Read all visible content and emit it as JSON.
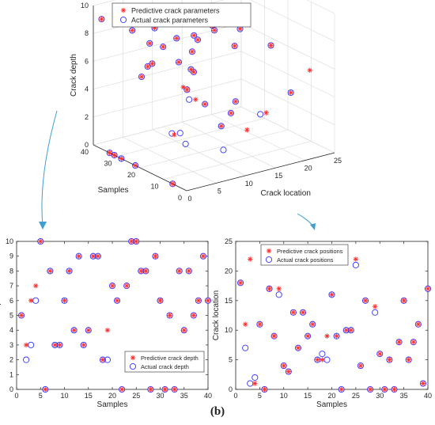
{
  "figure_label": "(b)",
  "colors": {
    "pred": "#ff2a2a",
    "actual": "#3333ff",
    "axis": "#262626",
    "grid": "#d9d9d9",
    "arrow": "#3fa0d0"
  },
  "chart_data": [
    {
      "type": "scatter3d",
      "title": "",
      "xlabel": "Crack location",
      "ylabel": "Samples",
      "zlabel": "Crack depth",
      "xticks": [
        0,
        5,
        10,
        15,
        20,
        25
      ],
      "yticks": [
        0,
        10,
        20,
        30,
        40
      ],
      "zticks": [
        0,
        2,
        4,
        6,
        8,
        10
      ],
      "xlim": [
        0,
        25
      ],
      "ylim": [
        0,
        40
      ],
      "zlim": [
        0,
        10
      ],
      "grid": true,
      "legend_position": "top",
      "series": [
        {
          "name": "Predictive crack parameters",
          "marker": "star",
          "points": [
            [
              18,
              1,
              5
            ],
            [
              11,
              2,
              3
            ],
            [
              22,
              3,
              6
            ],
            [
              1,
              4,
              7
            ],
            [
              11,
              5,
              10
            ],
            [
              0,
              6,
              0
            ],
            [
              17,
              7,
              8
            ],
            [
              9,
              8,
              3
            ],
            [
              17,
              9,
              3
            ],
            [
              4,
              10,
              6
            ],
            [
              3,
              11,
              8
            ],
            [
              13,
              12,
              4
            ],
            [
              7,
              13,
              9
            ],
            [
              13,
              14,
              3
            ],
            [
              9,
              15,
              4
            ],
            [
              11,
              16,
              9
            ],
            [
              5,
              17,
              9
            ],
            [
              5,
              18,
              2
            ],
            [
              9,
              19,
              4
            ],
            [
              16,
              20,
              7
            ],
            [
              9,
              21,
              6
            ],
            [
              0,
              22,
              0
            ],
            [
              10,
              23,
              7
            ],
            [
              10,
              24,
              10
            ],
            [
              22,
              25,
              10
            ],
            [
              4,
              26,
              8
            ],
            [
              15,
              27,
              8
            ],
            [
              0,
              28,
              0
            ],
            [
              14,
              29,
              9
            ],
            [
              6,
              30,
              6
            ],
            [
              0,
              31,
              0
            ],
            [
              5,
              32,
              5
            ],
            [
              0,
              33,
              0
            ],
            [
              8,
              34,
              8
            ],
            [
              15,
              35,
              4
            ],
            [
              5,
              36,
              8
            ],
            [
              8,
              37,
              5
            ],
            [
              11,
              38,
              6
            ],
            [
              1,
              39,
              9
            ],
            [
              17,
              40,
              6
            ]
          ]
        },
        {
          "name": "Actual crack parameters",
          "marker": "circle",
          "points": [
            [
              18,
              1,
              5
            ],
            [
              7,
              2,
              2
            ],
            [
              1,
              3,
              3
            ],
            [
              2,
              4,
              6
            ],
            [
              11,
              5,
              10
            ],
            [
              0,
              6,
              0
            ],
            [
              17,
              7,
              8
            ],
            [
              9,
              8,
              3
            ],
            [
              16,
              9,
              3
            ],
            [
              4,
              10,
              6
            ],
            [
              3,
              11,
              8
            ],
            [
              13,
              12,
              4
            ],
            [
              7,
              13,
              9
            ],
            [
              13,
              14,
              3
            ],
            [
              9,
              15,
              4
            ],
            [
              11,
              16,
              9
            ],
            [
              5,
              17,
              9
            ],
            [
              6,
              18,
              2
            ],
            [
              5,
              19,
              2
            ],
            [
              16,
              20,
              7
            ],
            [
              9,
              21,
              6
            ],
            [
              0,
              22,
              0
            ],
            [
              10,
              23,
              7
            ],
            [
              10,
              24,
              10
            ],
            [
              21,
              25,
              10
            ],
            [
              4,
              26,
              8
            ],
            [
              15,
              27,
              8
            ],
            [
              0,
              28,
              0
            ],
            [
              13,
              29,
              9
            ],
            [
              6,
              30,
              6
            ],
            [
              0,
              31,
              0
            ],
            [
              5,
              32,
              5
            ],
            [
              0,
              33,
              0
            ],
            [
              8,
              34,
              8
            ],
            [
              15,
              35,
              4
            ],
            [
              5,
              36,
              8
            ],
            [
              8,
              37,
              5
            ],
            [
              11,
              38,
              6
            ],
            [
              1,
              39,
              9
            ],
            [
              17,
              40,
              6
            ]
          ]
        }
      ]
    },
    {
      "type": "scatter",
      "title": "",
      "xlabel": "Samples",
      "ylabel": "Crack depth",
      "xticks": [
        0,
        5,
        10,
        15,
        20,
        25,
        30,
        35,
        40
      ],
      "yticks": [
        0,
        1,
        2,
        3,
        4,
        5,
        6,
        7,
        8,
        9,
        10
      ],
      "xlim": [
        0,
        40
      ],
      "ylim": [
        0,
        10
      ],
      "grid": false,
      "legend_position": "bottom-right",
      "x": [
        1,
        2,
        3,
        4,
        5,
        6,
        7,
        8,
        9,
        10,
        11,
        12,
        13,
        14,
        15,
        16,
        17,
        18,
        19,
        20,
        21,
        22,
        23,
        24,
        25,
        26,
        27,
        28,
        29,
        30,
        31,
        32,
        33,
        34,
        35,
        36,
        37,
        38,
        39,
        40
      ],
      "series": [
        {
          "name": "Predictive crack depth",
          "marker": "star",
          "values": [
            5,
            3,
            6,
            7,
            10,
            0,
            8,
            3,
            3,
            6,
            8,
            4,
            9,
            3,
            4,
            9,
            9,
            2,
            4,
            7,
            6,
            0,
            7,
            10,
            10,
            8,
            8,
            0,
            9,
            6,
            0,
            5,
            0,
            8,
            4,
            8,
            5,
            6,
            9,
            6
          ]
        },
        {
          "name": "Actual crack depth",
          "marker": "circle",
          "values": [
            5,
            2,
            3,
            6,
            10,
            0,
            8,
            3,
            3,
            6,
            8,
            4,
            9,
            3,
            4,
            9,
            9,
            2,
            2,
            7,
            6,
            0,
            7,
            10,
            10,
            8,
            8,
            0,
            9,
            6,
            0,
            5,
            0,
            8,
            4,
            8,
            5,
            6,
            9,
            6
          ]
        }
      ]
    },
    {
      "type": "scatter",
      "title": "",
      "xlabel": "Samples",
      "ylabel": "Crack location",
      "xticks": [
        0,
        5,
        10,
        15,
        20,
        25,
        30,
        35,
        40
      ],
      "yticks": [
        0,
        5,
        10,
        15,
        20,
        25
      ],
      "xlim": [
        0,
        40
      ],
      "ylim": [
        0,
        25
      ],
      "grid": false,
      "legend_position": "top-left",
      "x": [
        1,
        2,
        3,
        4,
        5,
        6,
        7,
        8,
        9,
        10,
        11,
        12,
        13,
        14,
        15,
        16,
        17,
        18,
        19,
        20,
        21,
        22,
        23,
        24,
        25,
        26,
        27,
        28,
        29,
        30,
        31,
        32,
        33,
        34,
        35,
        36,
        37,
        38,
        39,
        40
      ],
      "series": [
        {
          "name": "Predictive crack positions",
          "marker": "star",
          "values": [
            18,
            11,
            22,
            1,
            11,
            0,
            17,
            9,
            17,
            4,
            3,
            13,
            7,
            13,
            9,
            11,
            5,
            5,
            9,
            16,
            9,
            0,
            10,
            10,
            22,
            4,
            15,
            0,
            14,
            6,
            0,
            5,
            0,
            8,
            15,
            5,
            8,
            11,
            1,
            17
          ]
        },
        {
          "name": "Actual crack positions",
          "marker": "circle",
          "values": [
            18,
            7,
            1,
            2,
            11,
            0,
            17,
            9,
            16,
            4,
            3,
            13,
            7,
            13,
            9,
            11,
            5,
            6,
            5,
            16,
            9,
            0,
            10,
            10,
            21,
            4,
            15,
            0,
            13,
            6,
            0,
            5,
            0,
            8,
            15,
            5,
            8,
            11,
            1,
            17
          ]
        }
      ]
    }
  ]
}
